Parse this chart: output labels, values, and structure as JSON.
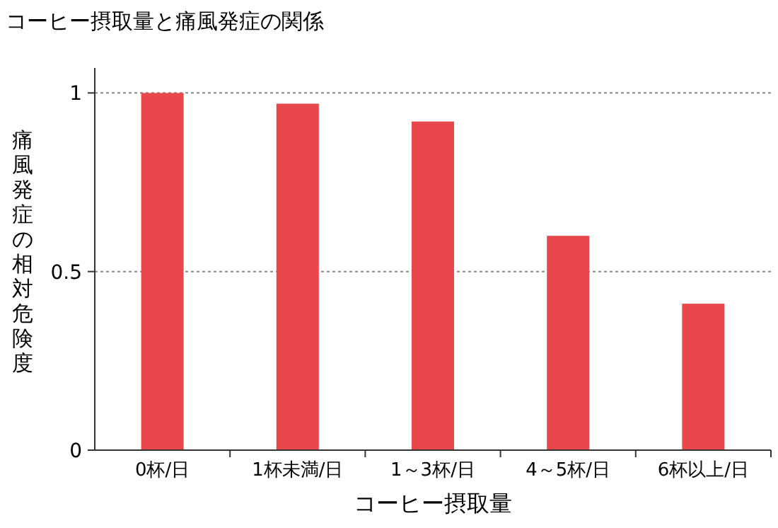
{
  "chart_data": {
    "type": "bar",
    "title": "コーヒー摂取量と痛風発症の関係",
    "xlabel": "コーヒー摂取量",
    "ylabel": "痛風発症の相対危険度",
    "categories": [
      "0杯/日",
      "1杯未満/日",
      "1～3杯/日",
      "4～5杯/日",
      "6杯以上/日"
    ],
    "values": [
      1.0,
      0.97,
      0.92,
      0.6,
      0.41
    ],
    "color": "#e8474c",
    "ylim": [
      0,
      1.07
    ],
    "yticks": [
      0,
      0.5,
      1
    ],
    "grid": "y"
  }
}
